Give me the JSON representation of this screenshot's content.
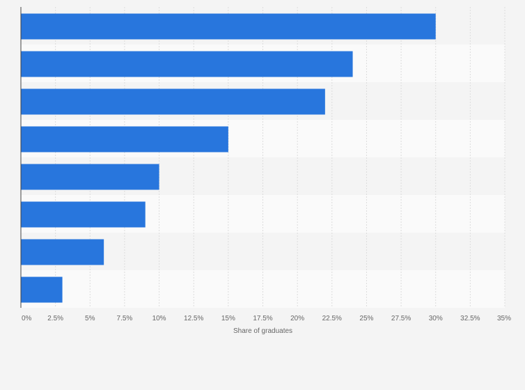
{
  "chart_data": {
    "type": "bar",
    "orientation": "horizontal",
    "title": "",
    "categories": [
      "",
      "",
      "",
      "",
      "",
      "",
      "",
      ""
    ],
    "values": [
      30,
      24,
      22,
      15,
      10,
      9,
      6,
      3
    ],
    "xlabel": "Share of graduates",
    "ylabel": "",
    "xlim": [
      0,
      35
    ],
    "xticks": [
      0,
      2.5,
      5,
      7.5,
      10,
      12.5,
      15,
      17.5,
      20,
      22.5,
      25,
      27.5,
      30,
      32.5,
      35
    ],
    "xtick_labels": [
      "0%",
      "2.5%",
      "5%",
      "7.5%",
      "10%",
      "12.5%",
      "15%",
      "17.5%",
      "20%",
      "22.5%",
      "25%",
      "27.5%",
      "30%",
      "32.5%",
      "35%"
    ],
    "grid": true,
    "legend": "none"
  },
  "colors": {
    "bar": "#2876dd",
    "plot_bg": "#f4f4f4",
    "row_band_odd": "#f4f4f4",
    "row_band_even": "#fafafa",
    "grid": "#dcdcdc",
    "axis": "#444444",
    "text": "#666666"
  }
}
